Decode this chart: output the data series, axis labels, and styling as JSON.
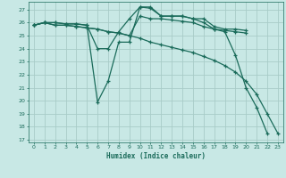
{
  "xlabel": "Humidex (Indice chaleur)",
  "bg_color": "#c8e8e5",
  "grid_color": "#a8ccc8",
  "line_color": "#1a6b5a",
  "xlim": [
    -0.5,
    23.5
  ],
  "ylim": [
    16.8,
    27.6
  ],
  "yticks": [
    17,
    18,
    19,
    20,
    21,
    22,
    23,
    24,
    25,
    26,
    27
  ],
  "xticks": [
    0,
    1,
    2,
    3,
    4,
    5,
    6,
    7,
    8,
    9,
    10,
    11,
    12,
    13,
    14,
    15,
    16,
    17,
    18,
    19,
    20,
    21,
    22,
    23
  ],
  "series": [
    [
      25.8,
      26.0,
      26.0,
      25.9,
      25.9,
      25.8,
      24.0,
      24.0,
      25.3,
      26.3,
      27.2,
      27.2,
      26.5,
      26.5,
      26.5,
      26.3,
      26.3,
      25.7,
      25.5,
      25.5,
      25.4,
      null,
      null,
      null
    ],
    [
      25.8,
      26.0,
      26.0,
      25.9,
      25.9,
      25.8,
      19.9,
      21.5,
      24.5,
      24.5,
      27.2,
      27.1,
      26.5,
      26.5,
      26.5,
      26.3,
      26.0,
      25.5,
      25.3,
      23.5,
      21.0,
      19.5,
      17.5,
      null
    ],
    [
      25.8,
      26.0,
      25.8,
      25.8,
      25.7,
      25.6,
      25.5,
      25.3,
      25.2,
      25.0,
      26.5,
      26.3,
      26.3,
      26.2,
      26.1,
      26.0,
      25.7,
      25.5,
      25.4,
      25.3,
      25.2,
      null,
      null,
      null
    ],
    [
      25.8,
      26.0,
      25.8,
      25.8,
      25.7,
      25.6,
      25.5,
      25.3,
      25.2,
      25.0,
      24.8,
      24.5,
      24.3,
      24.1,
      23.9,
      23.7,
      23.4,
      23.1,
      22.7,
      22.2,
      21.5,
      20.5,
      19.0,
      17.5
    ]
  ]
}
